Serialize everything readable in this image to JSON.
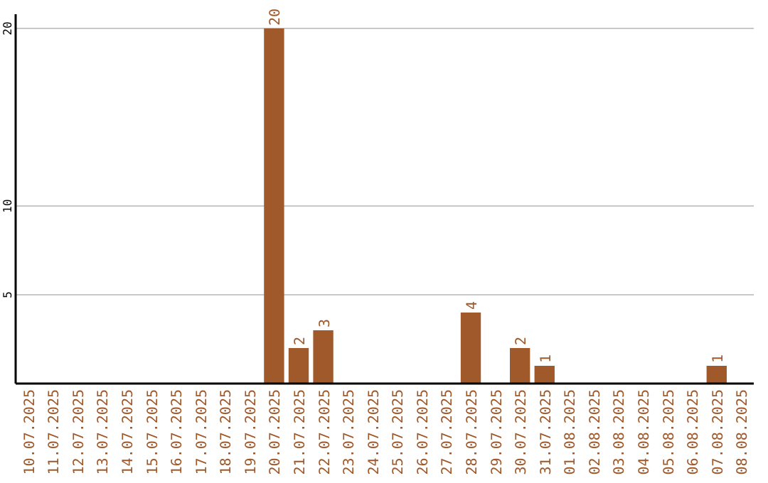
{
  "chart_data": {
    "type": "bar",
    "categories": [
      "10.07.2025",
      "11.07.2025",
      "12.07.2025",
      "13.07.2025",
      "14.07.2025",
      "15.07.2025",
      "16.07.2025",
      "17.07.2025",
      "18.07.2025",
      "19.07.2025",
      "20.07.2025",
      "21.07.2025",
      "22.07.2025",
      "23.07.2025",
      "24.07.2025",
      "25.07.2025",
      "26.07.2025",
      "27.07.2025",
      "28.07.2025",
      "29.07.2025",
      "30.07.2025",
      "31.07.2025",
      "01.08.2025",
      "02.08.2025",
      "03.08.2025",
      "04.08.2025",
      "05.08.2025",
      "06.08.2025",
      "07.08.2025",
      "08.08.2025"
    ],
    "values": [
      0,
      0,
      0,
      0,
      0,
      0,
      0,
      0,
      0,
      0,
      20,
      2,
      3,
      0,
      0,
      0,
      0,
      0,
      4,
      0,
      2,
      1,
      0,
      0,
      0,
      0,
      0,
      0,
      1,
      0
    ],
    "value_labels": [
      null,
      null,
      null,
      null,
      null,
      null,
      null,
      null,
      null,
      null,
      "20",
      "2",
      "3",
      null,
      null,
      null,
      null,
      null,
      "4",
      null,
      "2",
      "1",
      null,
      null,
      null,
      null,
      null,
      null,
      "1",
      null
    ],
    "color": "#a0592a",
    "ylim": [
      0,
      20.8
    ],
    "yticks": [
      5,
      10,
      20
    ],
    "grid": "y"
  }
}
